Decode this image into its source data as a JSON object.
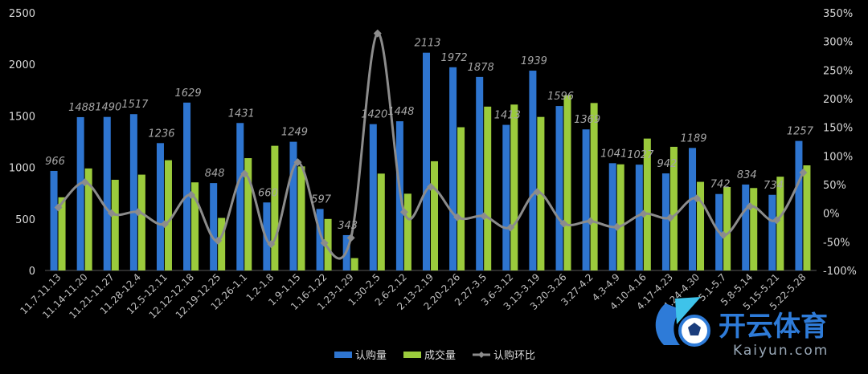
{
  "chart_data": {
    "type": "bar",
    "categories": [
      "11.7-11.13",
      "11.14-11.20",
      "11.21-11.27",
      "11.28-12.4",
      "12.5-12.11",
      "12.12-12.18",
      "12.19-12.25",
      "12.26-1.1",
      "1.2-1.8",
      "1.9-1.15",
      "1.16-1.22",
      "1.23-1.29",
      "1.30-2.5",
      "2.6-2.12",
      "2.13-2.19",
      "2.20-2.26",
      "2.27-3.5",
      "3.6-3.12",
      "3.13-3.19",
      "3.20-3.26",
      "3.27-4.2",
      "4.3-4.9",
      "4.10-4.16",
      "4.17-4.23",
      "4.24-4.30",
      "5.1-5.7",
      "5.8-5.14",
      "5.15-5.21",
      "5.22-5.28"
    ],
    "series": [
      {
        "name": "认购量",
        "type": "bar",
        "axis": "left",
        "color": "#2e75d0",
        "values": [
          966,
          1488,
          1490,
          1517,
          1236,
          1629,
          848,
          1431,
          660,
          1249,
          597,
          343,
          1420,
          1448,
          2113,
          1972,
          1878,
          1413,
          1939,
          1596,
          1369,
          1041,
          1027,
          942,
          1189,
          742,
          834,
          734,
          1257
        ]
      },
      {
        "name": "成交量",
        "type": "bar",
        "axis": "left",
        "color": "#9bcb3c",
        "values": [
          710,
          990,
          880,
          930,
          1070,
          855,
          510,
          1090,
          1210,
          1010,
          500,
          120,
          940,
          745,
          1060,
          1390,
          1590,
          1610,
          1490,
          1700,
          1625,
          1030,
          1280,
          1200,
          860,
          810,
          800,
          910,
          1020
        ]
      },
      {
        "name": "认购环比",
        "type": "line",
        "axis": "right",
        "color": "#8c8c8c",
        "values": [
          10,
          54,
          0,
          2,
          -19,
          32,
          -48,
          69,
          -54,
          89,
          -52,
          -43,
          314,
          2,
          46,
          -7,
          -5,
          -25,
          37,
          -18,
          -14,
          -24,
          -1,
          -8,
          26,
          -38,
          12,
          -12,
          71
        ]
      }
    ],
    "y_left": {
      "min": 0,
      "max": 2500,
      "ticks": [
        "0",
        "500",
        "1000",
        "1500",
        "2000",
        "2500"
      ]
    },
    "y_right": {
      "min": -100,
      "max": 350,
      "ticks": [
        "-100%",
        "-50%",
        "0%",
        "50%",
        "100%",
        "150%",
        "200%",
        "250%",
        "300%",
        "350%"
      ]
    },
    "data_labels_series": "认购量",
    "legend": {
      "placement": "bottom",
      "entries": [
        "认购量",
        "成交量",
        "认购环比"
      ]
    },
    "grid": false,
    "background": "#000000"
  },
  "watermark": {
    "title": "开云体育",
    "subtitle": "Kaiyun.com",
    "colors": {
      "primary": "#2e7bd8",
      "secondary": "#3ec3ea"
    }
  }
}
